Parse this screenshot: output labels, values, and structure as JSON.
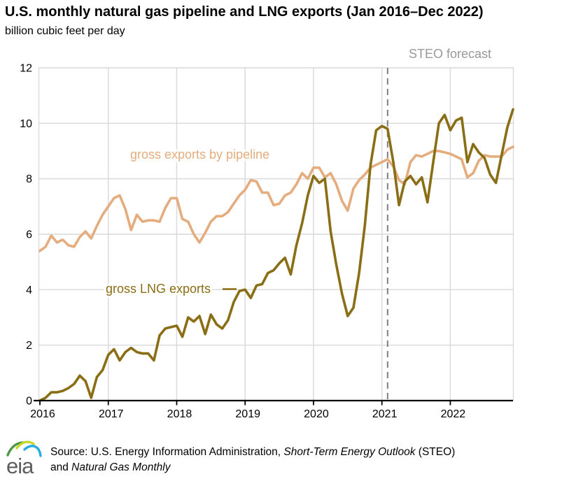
{
  "page": {
    "title": "U.S. monthly natural gas pipeline and LNG exports (Jan 2016–Dec 2022)",
    "subtitle": "billion cubic feet per day"
  },
  "chart_data": {
    "type": "line",
    "title": "U.S. monthly natural gas pipeline and LNG exports (Jan 2016–Dec 2022)",
    "ylabel": "billion cubic feet per day",
    "xlabel": "",
    "ylim": [
      0,
      12
    ],
    "grid": true,
    "legend_position": "inline-labels",
    "y_ticks": [
      0,
      2,
      4,
      6,
      8,
      10,
      12
    ],
    "x_tick_labels": [
      "2016",
      "2017",
      "2018",
      "2019",
      "2020",
      "2021",
      "2022"
    ],
    "forecast": {
      "label": "STEO forecast",
      "start_month": "2021-02"
    },
    "months": [
      "2016-01",
      "2016-02",
      "2016-03",
      "2016-04",
      "2016-05",
      "2016-06",
      "2016-07",
      "2016-08",
      "2016-09",
      "2016-10",
      "2016-11",
      "2016-12",
      "2017-01",
      "2017-02",
      "2017-03",
      "2017-04",
      "2017-05",
      "2017-06",
      "2017-07",
      "2017-08",
      "2017-09",
      "2017-10",
      "2017-11",
      "2017-12",
      "2018-01",
      "2018-02",
      "2018-03",
      "2018-04",
      "2018-05",
      "2018-06",
      "2018-07",
      "2018-08",
      "2018-09",
      "2018-10",
      "2018-11",
      "2018-12",
      "2019-01",
      "2019-02",
      "2019-03",
      "2019-04",
      "2019-05",
      "2019-06",
      "2019-07",
      "2019-08",
      "2019-09",
      "2019-10",
      "2019-11",
      "2019-12",
      "2020-01",
      "2020-02",
      "2020-03",
      "2020-04",
      "2020-05",
      "2020-06",
      "2020-07",
      "2020-08",
      "2020-09",
      "2020-10",
      "2020-11",
      "2020-12",
      "2021-01",
      "2021-02",
      "2021-03",
      "2021-04",
      "2021-05",
      "2021-06",
      "2021-07",
      "2021-08",
      "2021-09",
      "2021-10",
      "2021-11",
      "2021-12",
      "2022-01",
      "2022-02",
      "2022-03",
      "2022-04",
      "2022-05",
      "2022-06",
      "2022-07",
      "2022-08",
      "2022-09",
      "2022-10",
      "2022-11",
      "2022-12"
    ],
    "series": [
      {
        "name": "gross exports by pipeline",
        "color": "#E5AC7E",
        "values": [
          5.4,
          5.55,
          5.95,
          5.7,
          5.8,
          5.6,
          5.55,
          5.9,
          6.1,
          5.85,
          6.3,
          6.7,
          7.0,
          7.3,
          7.4,
          6.9,
          6.15,
          6.7,
          6.45,
          6.5,
          6.5,
          6.45,
          6.95,
          7.3,
          7.3,
          6.55,
          6.45,
          6.0,
          5.7,
          6.05,
          6.45,
          6.65,
          6.65,
          6.8,
          7.1,
          7.4,
          7.6,
          7.95,
          7.9,
          7.5,
          7.5,
          7.05,
          7.1,
          7.4,
          7.5,
          7.8,
          8.2,
          8.0,
          8.4,
          8.4,
          8.05,
          8.2,
          7.8,
          7.2,
          6.85,
          7.65,
          7.95,
          8.15,
          8.4,
          8.5,
          8.6,
          8.7,
          8.45,
          7.95,
          7.8,
          8.6,
          8.85,
          8.8,
          8.9,
          9.0,
          9.0,
          8.95,
          8.9,
          8.8,
          8.7,
          8.05,
          8.2,
          8.65,
          8.85,
          8.8,
          8.8,
          8.8,
          9.05,
          9.15
        ]
      },
      {
        "name": "gross LNG exports",
        "color": "#8A6E16",
        "values": [
          0.0,
          0.1,
          0.3,
          0.3,
          0.35,
          0.45,
          0.6,
          0.9,
          0.7,
          0.1,
          0.85,
          1.1,
          1.65,
          1.85,
          1.45,
          1.75,
          1.9,
          1.75,
          1.7,
          1.7,
          1.45,
          2.35,
          2.6,
          2.65,
          2.7,
          2.3,
          3.0,
          2.85,
          3.05,
          2.4,
          3.1,
          2.75,
          2.6,
          2.9,
          3.55,
          3.95,
          4.0,
          3.7,
          4.15,
          4.2,
          4.6,
          4.7,
          4.95,
          5.15,
          4.55,
          5.6,
          6.4,
          7.4,
          8.1,
          7.85,
          8.0,
          6.1,
          4.9,
          3.85,
          3.05,
          3.35,
          4.6,
          6.3,
          8.5,
          9.75,
          9.9,
          9.8,
          8.6,
          7.05,
          7.9,
          8.1,
          7.8,
          8.05,
          7.15,
          8.6,
          10.0,
          10.3,
          9.75,
          10.1,
          10.2,
          8.6,
          9.25,
          8.95,
          8.75,
          8.15,
          7.85,
          8.85,
          9.85,
          10.5
        ]
      }
    ]
  },
  "colors": {
    "pipeline": "#E5AC7E",
    "lng": "#8A6E16",
    "gridline": "#D9D9D9",
    "plot_border": "#D9D9D9",
    "axis": "#000000",
    "forecast_divider": "#7F7F7F",
    "forecast_label": "#999999",
    "logo_gray": "#5C5D5F",
    "logo_green": "#4E9744",
    "logo_yellow": "#C5D92D",
    "logo_blue": "#29ABE2"
  },
  "footer": {
    "source_prefix": "Source: U.S. Energy Information Administration, ",
    "steo_title": "Short-Term Energy Outlook",
    "steo_suffix": " (STEO)",
    "line2_prefix": "and ",
    "ngm_title": "Natural Gas Monthly",
    "logo_text": "eia"
  }
}
